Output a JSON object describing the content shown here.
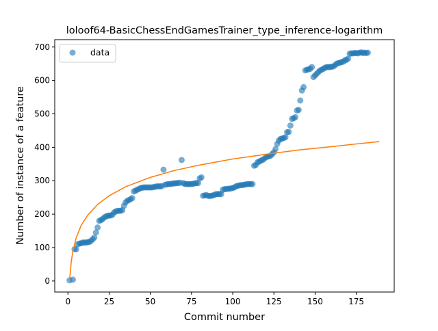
{
  "chart_data": {
    "type": "scatter",
    "title": "loloof64-BasicChessEndGamesTrainer_type_inference-logarithm",
    "xlabel": "Commit number",
    "ylabel": "Number of instance of a feature",
    "xlim": [
      -8,
      198
    ],
    "ylim": [
      -33,
      722
    ],
    "xticks": [
      0,
      25,
      50,
      75,
      100,
      125,
      150,
      175
    ],
    "yticks": [
      0,
      100,
      200,
      300,
      400,
      500,
      600,
      700
    ],
    "grid": false,
    "legend": {
      "placement": "top-left",
      "entries": [
        "data"
      ]
    },
    "colors": {
      "data": "#1f77b4",
      "fit": "#ff7f0e"
    },
    "series": [
      {
        "name": "data",
        "kind": "points",
        "points": [
          [
            1,
            2
          ],
          [
            3,
            4
          ],
          [
            4,
            95
          ],
          [
            5,
            95
          ],
          [
            6,
            110
          ],
          [
            7,
            112
          ],
          [
            8,
            113
          ],
          [
            9,
            115
          ],
          [
            10,
            115
          ],
          [
            11,
            115
          ],
          [
            12,
            116
          ],
          [
            13,
            117
          ],
          [
            14,
            120
          ],
          [
            15,
            125
          ],
          [
            16,
            130
          ],
          [
            17,
            145
          ],
          [
            18,
            160
          ],
          [
            19,
            180
          ],
          [
            20,
            182
          ],
          [
            21,
            185
          ],
          [
            22,
            190
          ],
          [
            23,
            193
          ],
          [
            24,
            195
          ],
          [
            25,
            196
          ],
          [
            26,
            196
          ],
          [
            27,
            198
          ],
          [
            28,
            205
          ],
          [
            29,
            208
          ],
          [
            30,
            210
          ],
          [
            31,
            210
          ],
          [
            32,
            210
          ],
          [
            33,
            212
          ],
          [
            34,
            225
          ],
          [
            35,
            235
          ],
          [
            36,
            240
          ],
          [
            37,
            242
          ],
          [
            38,
            245
          ],
          [
            39,
            248
          ],
          [
            40,
            268
          ],
          [
            41,
            270
          ],
          [
            42,
            273
          ],
          [
            43,
            275
          ],
          [
            44,
            278
          ],
          [
            45,
            279
          ],
          [
            46,
            280
          ],
          [
            47,
            280
          ],
          [
            48,
            280
          ],
          [
            49,
            280
          ],
          [
            50,
            280
          ],
          [
            51,
            280
          ],
          [
            52,
            281
          ],
          [
            53,
            282
          ],
          [
            54,
            283
          ],
          [
            55,
            283
          ],
          [
            56,
            283
          ],
          [
            57,
            284
          ],
          [
            58,
            333
          ],
          [
            59,
            288
          ],
          [
            60,
            289
          ],
          [
            61,
            290
          ],
          [
            62,
            290
          ],
          [
            63,
            291
          ],
          [
            64,
            292
          ],
          [
            65,
            292
          ],
          [
            66,
            293
          ],
          [
            67,
            293
          ],
          [
            68,
            294
          ],
          [
            69,
            362
          ],
          [
            70,
            293
          ],
          [
            71,
            290
          ],
          [
            72,
            290
          ],
          [
            73,
            290
          ],
          [
            74,
            290
          ],
          [
            75,
            290
          ],
          [
            76,
            291
          ],
          [
            77,
            292
          ],
          [
            78,
            293
          ],
          [
            79,
            293
          ],
          [
            80,
            307
          ],
          [
            81,
            310
          ],
          [
            82,
            255
          ],
          [
            83,
            256
          ],
          [
            84,
            257
          ],
          [
            85,
            255
          ],
          [
            86,
            254
          ],
          [
            87,
            255
          ],
          [
            88,
            256
          ],
          [
            89,
            258
          ],
          [
            90,
            260
          ],
          [
            91,
            260
          ],
          [
            92,
            260
          ],
          [
            93,
            260
          ],
          [
            94,
            273
          ],
          [
            95,
            275
          ],
          [
            96,
            275
          ],
          [
            97,
            276
          ],
          [
            98,
            276
          ],
          [
            99,
            277
          ],
          [
            100,
            278
          ],
          [
            101,
            280
          ],
          [
            102,
            283
          ],
          [
            103,
            285
          ],
          [
            104,
            286
          ],
          [
            105,
            287
          ],
          [
            106,
            287
          ],
          [
            107,
            288
          ],
          [
            108,
            289
          ],
          [
            109,
            290
          ],
          [
            110,
            290
          ],
          [
            111,
            290
          ],
          [
            112,
            290
          ],
          [
            113,
            345
          ],
          [
            114,
            347
          ],
          [
            115,
            355
          ],
          [
            116,
            357
          ],
          [
            117,
            360
          ],
          [
            118,
            362
          ],
          [
            119,
            365
          ],
          [
            120,
            370
          ],
          [
            121,
            372
          ],
          [
            122,
            373
          ],
          [
            123,
            375
          ],
          [
            124,
            380
          ],
          [
            125,
            385
          ],
          [
            126,
            395
          ],
          [
            127,
            410
          ],
          [
            128,
            420
          ],
          [
            129,
            425
          ],
          [
            130,
            426
          ],
          [
            131,
            428
          ],
          [
            132,
            430
          ],
          [
            133,
            445
          ],
          [
            134,
            446
          ],
          [
            135,
            465
          ],
          [
            136,
            485
          ],
          [
            137,
            487
          ],
          [
            138,
            490
          ],
          [
            139,
            510
          ],
          [
            140,
            512
          ],
          [
            141,
            540
          ],
          [
            142,
            570
          ],
          [
            143,
            580
          ],
          [
            144,
            630
          ],
          [
            145,
            632
          ],
          [
            146,
            633
          ],
          [
            147,
            635
          ],
          [
            148,
            640
          ],
          [
            149,
            610
          ],
          [
            150,
            615
          ],
          [
            151,
            620
          ],
          [
            152,
            625
          ],
          [
            153,
            630
          ],
          [
            154,
            632
          ],
          [
            155,
            635
          ],
          [
            156,
            638
          ],
          [
            157,
            640
          ],
          [
            158,
            640
          ],
          [
            159,
            640
          ],
          [
            160,
            641
          ],
          [
            161,
            642
          ],
          [
            162,
            645
          ],
          [
            163,
            650
          ],
          [
            164,
            652
          ],
          [
            165,
            653
          ],
          [
            166,
            655
          ],
          [
            167,
            656
          ],
          [
            168,
            660
          ],
          [
            169,
            662
          ],
          [
            170,
            665
          ],
          [
            171,
            680
          ],
          [
            172,
            681
          ],
          [
            173,
            681
          ],
          [
            174,
            682
          ],
          [
            175,
            682
          ],
          [
            176,
            681
          ],
          [
            177,
            683
          ],
          [
            178,
            684
          ],
          [
            179,
            682
          ],
          [
            180,
            683
          ],
          [
            181,
            682
          ],
          [
            182,
            683
          ]
        ]
      },
      {
        "kind": "line",
        "model": "logarithm",
        "points": [
          [
            1,
            3
          ],
          [
            2,
            57
          ],
          [
            3,
            89
          ],
          [
            5,
            129
          ],
          [
            8,
            166
          ],
          [
            12,
            197
          ],
          [
            18,
            229
          ],
          [
            25,
            255
          ],
          [
            35,
            282
          ],
          [
            50,
            310
          ],
          [
            65,
            331
          ],
          [
            80,
            347
          ],
          [
            100,
            365
          ],
          [
            120,
            379
          ],
          [
            140,
            392
          ],
          [
            160,
            402
          ],
          [
            175,
            410
          ],
          [
            189,
            417
          ]
        ]
      }
    ]
  }
}
